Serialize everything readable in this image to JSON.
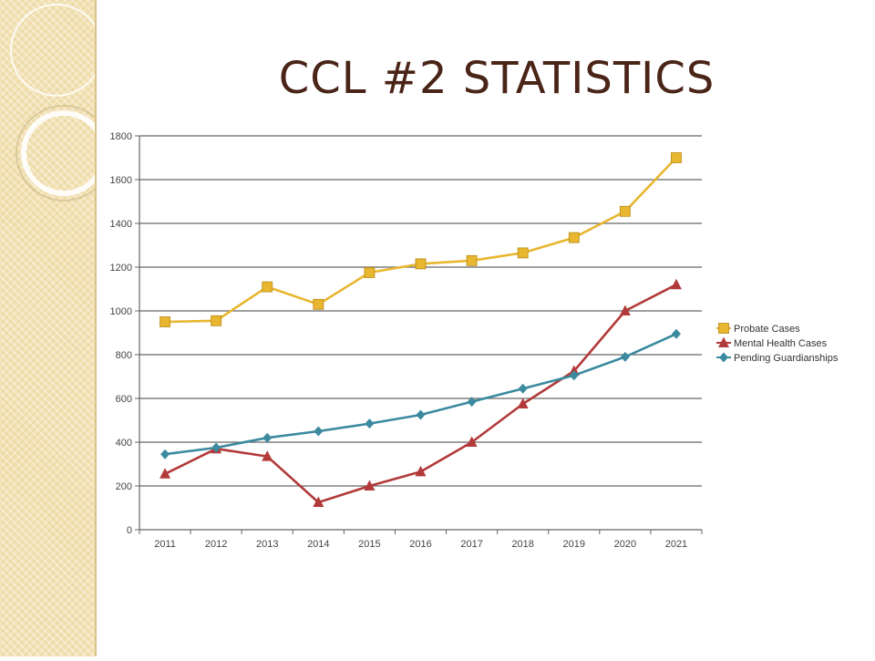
{
  "slide": {
    "title": "CCL #2 STATISTICS"
  },
  "chart_data": {
    "type": "line",
    "title": "",
    "xlabel": "",
    "ylabel": "",
    "ylim": [
      0,
      1800
    ],
    "yticks": [
      0,
      200,
      400,
      600,
      800,
      1000,
      1200,
      1400,
      1600,
      1800
    ],
    "grid": true,
    "legend_position": "right",
    "categories": [
      "2011",
      "2012",
      "2013",
      "2014",
      "2015",
      "2016",
      "2017",
      "2018",
      "2019",
      "2020",
      "2021"
    ],
    "series": [
      {
        "name": "Probate Cases",
        "marker": "square",
        "color": "#e8b62f",
        "values": [
          950,
          955,
          1110,
          1030,
          1175,
          1215,
          1230,
          1265,
          1335,
          1455,
          1700
        ]
      },
      {
        "name": "Mental Health Cases",
        "marker": "triangle",
        "color": "#b23a3a",
        "values": [
          255,
          370,
          335,
          125,
          200,
          265,
          400,
          575,
          725,
          1000,
          1120
        ]
      },
      {
        "name": "Pending Guardianships",
        "marker": "diamond",
        "color": "#3b8aa0",
        "values": [
          345,
          375,
          420,
          450,
          485,
          525,
          585,
          645,
          705,
          790,
          895
        ]
      }
    ]
  }
}
